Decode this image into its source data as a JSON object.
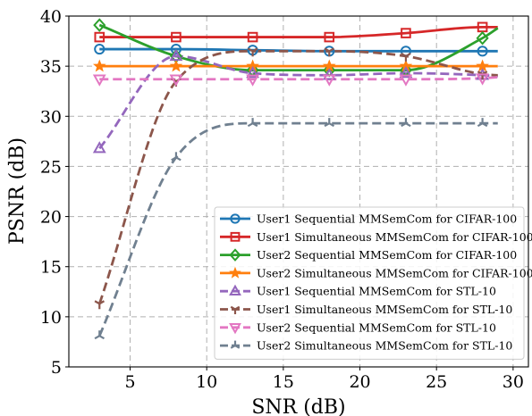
{
  "chart_data": {
    "type": "line",
    "xlabel": "SNR (dB)",
    "ylabel": "PSNR (dB)",
    "xlim": [
      1,
      31
    ],
    "ylim": [
      5,
      40
    ],
    "xticks": [
      5,
      10,
      15,
      20,
      25,
      30
    ],
    "yticks": [
      5,
      10,
      15,
      20,
      25,
      30,
      35,
      40
    ],
    "grid": true,
    "legend_position": "lower-right",
    "x": [
      3,
      8,
      13,
      18,
      23,
      28
    ],
    "series": [
      {
        "name": "User1 Sequential MMSemCom for CIFAR-100",
        "color": "#1f77b4",
        "linestyle": "solid",
        "marker": "circle",
        "values": [
          36.7,
          36.7,
          36.6,
          36.5,
          36.5,
          36.5
        ],
        "tail": [
          29,
          36.5
        ]
      },
      {
        "name": "User1 Simultaneous MMSemCom for CIFAR-100",
        "color": "#d62728",
        "linestyle": "solid",
        "marker": "square",
        "values": [
          37.9,
          37.9,
          37.9,
          37.9,
          38.3,
          38.9
        ],
        "tail": [
          29,
          38.9
        ]
      },
      {
        "name": "User2 Sequential MMSemCom for CIFAR-100",
        "color": "#2ca02c",
        "linestyle": "solid",
        "marker": "diamond",
        "values": [
          39.1,
          36.0,
          34.6,
          34.6,
          34.6,
          37.8
        ],
        "tail": [
          29,
          38.8
        ]
      },
      {
        "name": "User2 Simultaneous MMSemCom for CIFAR-100",
        "color": "#ff7f0e",
        "linestyle": "solid",
        "marker": "star",
        "values": [
          35.0,
          35.0,
          35.0,
          35.0,
          35.0,
          35.0
        ],
        "tail": [
          29,
          35.0
        ]
      },
      {
        "name": "User1 Sequential MMSemCom for STL-10",
        "color": "#9467bd",
        "linestyle": "dashed",
        "marker": "triangle-up",
        "values": [
          26.8,
          36.0,
          34.3,
          34.1,
          34.3,
          34.1
        ],
        "tail": [
          29,
          34.0
        ]
      },
      {
        "name": "User1 Simultaneous MMSemCom for STL-10",
        "color": "#8c564b",
        "linestyle": "dashed",
        "marker": "tri-down",
        "values": [
          11.3,
          33.5,
          36.5,
          36.5,
          36.0,
          34.2
        ],
        "tail": [
          29,
          34.1
        ]
      },
      {
        "name": "User2 Sequential MMSemCom for STL-10",
        "color": "#e377c2",
        "linestyle": "dashed",
        "marker": "triangle-down",
        "values": [
          33.7,
          33.7,
          33.7,
          33.7,
          33.7,
          33.8
        ],
        "tail": [
          29,
          33.9
        ]
      },
      {
        "name": "User2 Simultaneous MMSemCom for STL-10",
        "color": "#708090",
        "linestyle": "dashed",
        "marker": "tri-up",
        "values": [
          8.1,
          25.9,
          29.3,
          29.3,
          29.3,
          29.3
        ],
        "tail": [
          29,
          29.3
        ]
      }
    ]
  }
}
